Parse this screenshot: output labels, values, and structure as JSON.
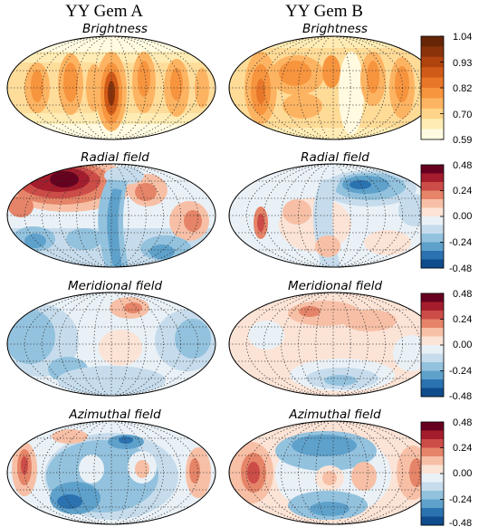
{
  "figure": {
    "column_titles": [
      "YY Gem A",
      "YY Gem B"
    ],
    "rows": [
      {
        "title": "Brightness",
        "colormap": "orange",
        "colorbar_ticks": [
          "1.04",
          "0.93",
          "0.82",
          "0.70",
          "0.59"
        ],
        "colorbar_range": [
          0.59,
          1.04
        ],
        "colors": [
          "#fffae0",
          "#feecb4",
          "#fdd48a",
          "#fdb462",
          "#f7943e",
          "#e8772a",
          "#d05a18",
          "#b0440f",
          "#8a330b",
          "#662506"
        ]
      },
      {
        "title": "Radial field",
        "colormap": "diverging",
        "colorbar_ticks": [
          "0.48",
          "0.24",
          "0.00",
          "-0.24",
          "-0.48"
        ],
        "colorbar_range": [
          -0.48,
          0.48
        ]
      },
      {
        "title": "Meridional field",
        "colormap": "diverging",
        "colorbar_ticks": [
          "0.48",
          "0.24",
          "0.00",
          "-0.24",
          "-0.48"
        ],
        "colorbar_range": [
          -0.48,
          0.48
        ]
      },
      {
        "title": "Azimuthal field",
        "colormap": "diverging",
        "colorbar_ticks": [
          "0.48",
          "0.24",
          "0.00",
          "-0.24",
          "-0.48"
        ],
        "colorbar_range": [
          -0.48,
          0.48
        ]
      }
    ],
    "diverging_colors": [
      "#67001f",
      "#a51d2d",
      "#cc4c48",
      "#e58468",
      "#f7c0a6",
      "#fbe3d6",
      "#e9f1f7",
      "#c6dcec",
      "#93c2de",
      "#5ea1cb",
      "#2b72b0",
      "#0f4c8c"
    ]
  }
}
